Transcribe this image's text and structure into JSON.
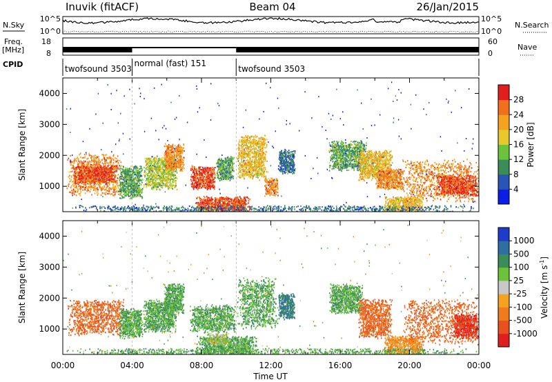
{
  "header": {
    "station": "Inuvik (fitACF)",
    "beam": "Beam 04",
    "date": "26/Jan/2015"
  },
  "panels": {
    "nsky_label": "N.Sky",
    "nsearch_label": "N.Search",
    "nsky_ticks": [
      "10^5",
      "10^0"
    ],
    "nsearch_ticks": [
      "10^5",
      "10^0"
    ],
    "freq_label": "Freq.",
    "freq_unit": "[MHz]",
    "freq_ticks": [
      "18",
      "8"
    ],
    "nave_label": "Nave",
    "nave_ticks": [
      "60",
      "0"
    ],
    "cpid_label": "CPID"
  },
  "cpid_segments": [
    {
      "label": "twofsound 3503",
      "start_h": 0,
      "end_h": 4
    },
    {
      "label": "normal (fast) 151",
      "start_h": 4,
      "end_h": 10
    },
    {
      "label": "twofsound 3503",
      "start_h": 10,
      "end_h": 24
    }
  ],
  "power_panel": {
    "ylabel": "Slant Range [km]",
    "yticks": [
      1000,
      2000,
      3000,
      4000
    ],
    "colorbar_title": "Power [dB]",
    "colorbar_ticks": [
      "4",
      "8",
      "12",
      "16",
      "20",
      "24",
      "28"
    ],
    "colorbar_colors": [
      "#0a1ee6",
      "#2a55b5",
      "#3c8c5a",
      "#6cc23a",
      "#e8c82a",
      "#f5a21e",
      "#f0701e",
      "#e01e1e"
    ]
  },
  "velocity_panel": {
    "ylabel": "Slant Range [km]",
    "yticks": [
      1000,
      2000,
      3000,
      4000
    ],
    "colorbar_title": "Velocity [m s^-1]",
    "colorbar_ticks": [
      "1000",
      "500",
      "100",
      "25",
      "-25",
      "-100",
      "-500",
      "-1000"
    ],
    "colorbar_colors": [
      "#1e3cc8",
      "#2e6fa0",
      "#3c8c5a",
      "#6cc23a",
      "#c8c8c8",
      "#f5a21e",
      "#f07a1e",
      "#e8501e",
      "#e01e1e"
    ]
  },
  "xaxis": {
    "ticks": [
      "00:00",
      "04:00",
      "08:00",
      "12:00",
      "16:00",
      "20:00",
      "00:00"
    ],
    "label": "Time UT"
  },
  "chart_data": {
    "type": "heatmap",
    "title": "Inuvik (fitACF) Beam 04 26/Jan/2015",
    "xlabel": "Time UT",
    "ylabel": "Slant Range [km]",
    "xlim": [
      0,
      24
    ],
    "ylim": [
      180,
      4500
    ],
    "power_clusters": [
      {
        "t0": 0.2,
        "t1": 3.4,
        "r0": 700,
        "r1": 2100,
        "p": 24
      },
      {
        "t0": 0.5,
        "t1": 3.2,
        "r0": 1100,
        "r1": 1700,
        "p": 28
      },
      {
        "t0": 3.2,
        "t1": 4.6,
        "r0": 600,
        "r1": 1700,
        "p": 12
      },
      {
        "t0": 4.6,
        "t1": 6.6,
        "r0": 900,
        "r1": 2000,
        "p": 16
      },
      {
        "t0": 5.8,
        "t1": 7.0,
        "r0": 1500,
        "r1": 2400,
        "p": 24
      },
      {
        "t0": 7.3,
        "t1": 8.8,
        "r0": 900,
        "r1": 1700,
        "p": 28
      },
      {
        "t0": 8.8,
        "t1": 9.9,
        "r0": 1200,
        "r1": 2000,
        "p": 12
      },
      {
        "t0": 7.6,
        "t1": 10.8,
        "r0": 180,
        "r1": 700,
        "p": 28
      },
      {
        "t0": 10.0,
        "t1": 11.8,
        "r0": 1200,
        "r1": 2700,
        "p": 20
      },
      {
        "t0": 11.6,
        "t1": 12.4,
        "r0": 700,
        "r1": 1300,
        "p": 24
      },
      {
        "t0": 12.4,
        "t1": 13.4,
        "r0": 1400,
        "r1": 2200,
        "p": 8
      },
      {
        "t0": 15.3,
        "t1": 17.5,
        "r0": 1500,
        "r1": 2500,
        "p": 12
      },
      {
        "t0": 17.0,
        "t1": 19.0,
        "r0": 1200,
        "r1": 2200,
        "p": 20
      },
      {
        "t0": 18.0,
        "t1": 19.7,
        "r0": 900,
        "r1": 1600,
        "p": 24
      },
      {
        "t0": 18.5,
        "t1": 20.8,
        "r0": 180,
        "r1": 700,
        "p": 20
      },
      {
        "t0": 19.5,
        "t1": 24.0,
        "r0": 500,
        "r1": 1900,
        "p": 24
      },
      {
        "t0": 21.5,
        "t1": 24.0,
        "r0": 700,
        "r1": 1400,
        "p": 28
      },
      {
        "t0": 0.0,
        "t1": 24.0,
        "r0": 180,
        "r1": 400,
        "p": 8
      }
    ],
    "velocity_clusters": [
      {
        "t0": 0.2,
        "t1": 3.6,
        "r0": 800,
        "r1": 2000,
        "v": -500
      },
      {
        "t0": 3.2,
        "t1": 4.6,
        "r0": 700,
        "r1": 1700,
        "v": 100
      },
      {
        "t0": 4.6,
        "t1": 6.6,
        "r0": 900,
        "r1": 2000,
        "v": 100
      },
      {
        "t0": 5.8,
        "t1": 7.0,
        "r0": 1500,
        "r1": 2500,
        "v": 100
      },
      {
        "t0": 7.3,
        "t1": 10.0,
        "r0": 900,
        "r1": 1800,
        "v": 100
      },
      {
        "t0": 7.6,
        "t1": 11.2,
        "r0": 180,
        "r1": 800,
        "v": 100
      },
      {
        "t0": 8.3,
        "t1": 9.6,
        "r0": 500,
        "r1": 900,
        "v": 25
      },
      {
        "t0": 10.0,
        "t1": 12.4,
        "r0": 1000,
        "r1": 2700,
        "v": 100
      },
      {
        "t0": 12.4,
        "t1": 13.4,
        "r0": 1300,
        "r1": 2200,
        "v": 500
      },
      {
        "t0": 15.3,
        "t1": 17.3,
        "r0": 1500,
        "r1": 2500,
        "v": 100
      },
      {
        "t0": 17.0,
        "t1": 19.0,
        "r0": 700,
        "r1": 2000,
        "v": -500
      },
      {
        "t0": 18.5,
        "t1": 20.8,
        "r0": 180,
        "r1": 800,
        "v": -100
      },
      {
        "t0": 19.5,
        "t1": 24.0,
        "r0": 500,
        "r1": 2000,
        "v": -500
      },
      {
        "t0": 22.5,
        "t1": 24.0,
        "r0": 700,
        "r1": 1500,
        "v": -1000
      },
      {
        "t0": 0.0,
        "t1": 24.0,
        "r0": 180,
        "r1": 400,
        "v": 100
      }
    ]
  }
}
